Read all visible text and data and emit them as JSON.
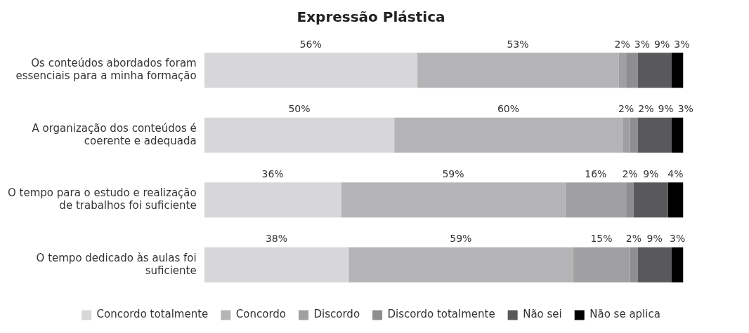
{
  "chart_data": {
    "type": "bar",
    "title": "Expressão Plástica",
    "orientation": "horizontal",
    "stacked": true,
    "legend": "bottom",
    "grid": false,
    "tick_labels": "y",
    "categories": [
      "Os conteúdos abordados foram essenciais para a minha formação",
      "A organização dos conteúdos é coerente e adequada",
      "O tempo para o estudo e realização de trabalhos foi suficiente",
      "O tempo dedicado às aulas foi suficiente"
    ],
    "series": [
      {
        "name": "Concordo totalmente",
        "color": "#d7d7d9",
        "values": [
          56,
          50,
          36,
          38
        ],
        "value_labels": [
          "56%",
          "50%",
          "36%",
          "38%"
        ]
      },
      {
        "name": "Concordo",
        "color": "#b4b4b6",
        "values": [
          53,
          60,
          59,
          59
        ],
        "value_labels": [
          "53%",
          "60%",
          "59%",
          "59%"
        ]
      },
      {
        "name": "Discordo",
        "color": "#a0a0a2",
        "values": [
          2,
          2,
          16,
          15
        ],
        "value_labels": [
          "2%",
          "2%",
          "16%",
          "15%"
        ]
      },
      {
        "name": "Discordo totalmente",
        "color": "#8e8e90",
        "values": [
          3,
          2,
          2,
          2
        ],
        "value_labels": [
          "3%",
          "2%",
          "2%",
          "2%"
        ]
      },
      {
        "name": "Não sei",
        "color": "#59595b",
        "values": [
          9,
          9,
          9,
          9
        ],
        "value_labels": [
          "9%",
          "9%",
          "9%",
          "9%"
        ]
      },
      {
        "name": "Não se aplica",
        "color": "#000000",
        "values": [
          3,
          3,
          4,
          3
        ],
        "value_labels": [
          "3%",
          "3%",
          "4%",
          "3%"
        ]
      }
    ]
  }
}
